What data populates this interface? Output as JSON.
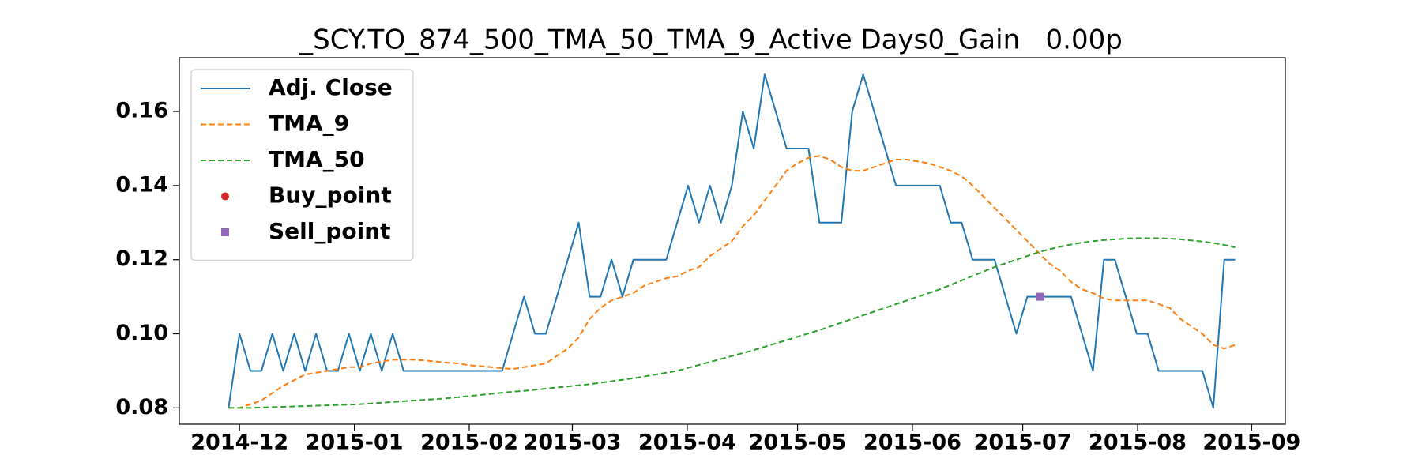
{
  "chart_data": {
    "type": "line",
    "title": "_SCY.TO_874_500_TMA_50_TMA_9_Active Days0_Gain   0.00p",
    "categories": [
      null,
      null,
      null,
      null,
      null,
      null,
      null,
      null,
      null,
      null,
      null,
      null,
      null,
      null,
      null,
      null,
      null,
      null,
      null,
      null,
      null,
      null,
      null,
      null,
      null,
      null,
      null,
      null,
      null,
      null,
      null,
      null,
      null,
      null,
      null,
      null,
      null,
      null,
      null,
      null,
      null,
      null,
      null,
      null,
      null,
      null,
      null,
      null,
      null,
      null,
      null,
      null,
      null,
      null,
      null,
      null,
      null,
      null,
      null,
      null,
      null,
      null,
      null,
      null,
      null,
      null,
      null,
      null,
      null,
      null,
      null,
      null,
      null,
      null,
      null,
      null,
      null,
      null,
      null,
      null,
      null,
      null,
      null,
      null,
      null,
      null,
      null,
      null,
      null,
      null,
      null,
      null,
      null
    ],
    "xlim": [
      -4.5,
      96.58
    ],
    "xticks": [
      {
        "value": 1,
        "label": "2014-12"
      },
      {
        "value": 11.5,
        "label": "2015-01"
      },
      {
        "value": 22,
        "label": "2015-02"
      },
      {
        "value": 31.42,
        "label": "2015-03"
      },
      {
        "value": 41.92,
        "label": "2015-04"
      },
      {
        "value": 52,
        "label": "2015-05"
      },
      {
        "value": 62.5,
        "label": "2015-06"
      },
      {
        "value": 72.58,
        "label": "2015-07"
      },
      {
        "value": 83.08,
        "label": "2015-08"
      },
      {
        "value": 93.5,
        "label": "2015-09"
      }
    ],
    "ylim": [
      0.0756,
      0.1745
    ],
    "yticks": [
      0.08,
      {
        "value": 0.1,
        "label": "0.10"
      },
      0.12,
      0.14,
      0.16
    ],
    "legend": "upper left",
    "series": [
      {
        "name": "Adj. Close",
        "color": "#1f77b4",
        "linestyle": "solid",
        "values": [
          0.08,
          0.1,
          0.09,
          0.09,
          0.1,
          0.09,
          0.1,
          0.09,
          0.1,
          0.09,
          0.09,
          0.1,
          0.09,
          0.1,
          0.09,
          0.1,
          0.09,
          0.09,
          0.09,
          0.09,
          0.09,
          0.09,
          0.09,
          0.09,
          0.09,
          0.09,
          0.1,
          0.11,
          0.1,
          0.1,
          0.11,
          0.12,
          0.13,
          0.11,
          0.11,
          0.12,
          0.11,
          0.12,
          0.12,
          0.12,
          0.12,
          0.13,
          0.14,
          0.13,
          0.14,
          0.13,
          0.14,
          0.16,
          0.15,
          0.17,
          0.16,
          0.15,
          0.15,
          0.15,
          0.13,
          0.13,
          0.13,
          0.16,
          0.17,
          0.16,
          0.15,
          0.14,
          0.14,
          0.14,
          0.14,
          0.14,
          0.13,
          0.13,
          0.12,
          0.12,
          0.12,
          0.11,
          0.1,
          0.11,
          0.11,
          0.11,
          0.11,
          0.11,
          0.1,
          0.09,
          0.12,
          0.12,
          0.11,
          0.1,
          0.1,
          0.09,
          0.09,
          0.09,
          0.09,
          0.09,
          0.08,
          0.12,
          0.12
        ]
      },
      {
        "name": "TMA_9",
        "color": "#ff7f0e",
        "linestyle": "dashed",
        "values": [
          0.08,
          0.08,
          0.081,
          0.082,
          0.084,
          0.086,
          0.0875,
          0.089,
          0.0895,
          0.09,
          0.0905,
          0.091,
          0.091,
          0.092,
          0.0925,
          0.093,
          0.093,
          0.093,
          0.0928,
          0.0925,
          0.0922,
          0.092,
          0.0915,
          0.0913,
          0.091,
          0.0907,
          0.0905,
          0.091,
          0.0915,
          0.092,
          0.094,
          0.096,
          0.099,
          0.104,
          0.107,
          0.109,
          0.11,
          0.111,
          0.113,
          0.114,
          0.115,
          0.1155,
          0.117,
          0.118,
          0.121,
          0.123,
          0.125,
          0.129,
          0.132,
          0.136,
          0.14,
          0.144,
          0.146,
          0.1475,
          0.148,
          0.147,
          0.145,
          0.144,
          0.144,
          0.145,
          0.146,
          0.147,
          0.147,
          0.1465,
          0.146,
          0.145,
          0.144,
          0.1425,
          0.14,
          0.137,
          0.134,
          0.131,
          0.128,
          0.125,
          0.122,
          0.119,
          0.117,
          0.114,
          0.112,
          0.111,
          0.1095,
          0.109,
          0.109,
          0.109,
          0.109,
          0.108,
          0.107,
          0.104,
          0.102,
          0.1,
          0.097,
          0.096,
          0.097
        ]
      },
      {
        "name": "TMA_50",
        "color": "#2ca02c",
        "linestyle": "dashed",
        "values": [
          0.08,
          0.08,
          0.08,
          0.0801,
          0.0802,
          0.0803,
          0.0804,
          0.0805,
          0.0806,
          0.0807,
          0.0808,
          0.0809,
          0.081,
          0.0812,
          0.0814,
          0.0816,
          0.0818,
          0.082,
          0.0822,
          0.0824,
          0.0826,
          0.0829,
          0.0832,
          0.0835,
          0.0838,
          0.0841,
          0.0844,
          0.0846,
          0.0849,
          0.0852,
          0.0855,
          0.0858,
          0.0861,
          0.0864,
          0.0868,
          0.0872,
          0.0876,
          0.088,
          0.0885,
          0.089,
          0.0895,
          0.09,
          0.0908,
          0.0916,
          0.0924,
          0.0932,
          0.094,
          0.0948,
          0.0956,
          0.0965,
          0.0974,
          0.0983,
          0.0992,
          0.1001,
          0.101,
          0.102,
          0.103,
          0.104,
          0.105,
          0.106,
          0.107,
          0.108,
          0.109,
          0.11,
          0.111,
          0.112,
          0.1132,
          0.1144,
          0.1156,
          0.1168,
          0.118,
          0.119,
          0.12,
          0.121,
          0.122,
          0.1228,
          0.1235,
          0.1241,
          0.1246,
          0.125,
          0.1253,
          0.1255,
          0.1257,
          0.1258,
          0.1258,
          0.1258,
          0.1257,
          0.1255,
          0.1252,
          0.1249,
          0.1245,
          0.124,
          0.1233
        ]
      },
      {
        "name": "Buy_point",
        "color": "#d62728",
        "marker": "circle",
        "x": [],
        "values": []
      },
      {
        "name": "Sell_point",
        "color": "#9467bd",
        "marker": "square",
        "x": [
          74.2
        ],
        "values": [
          0.11
        ]
      }
    ]
  }
}
